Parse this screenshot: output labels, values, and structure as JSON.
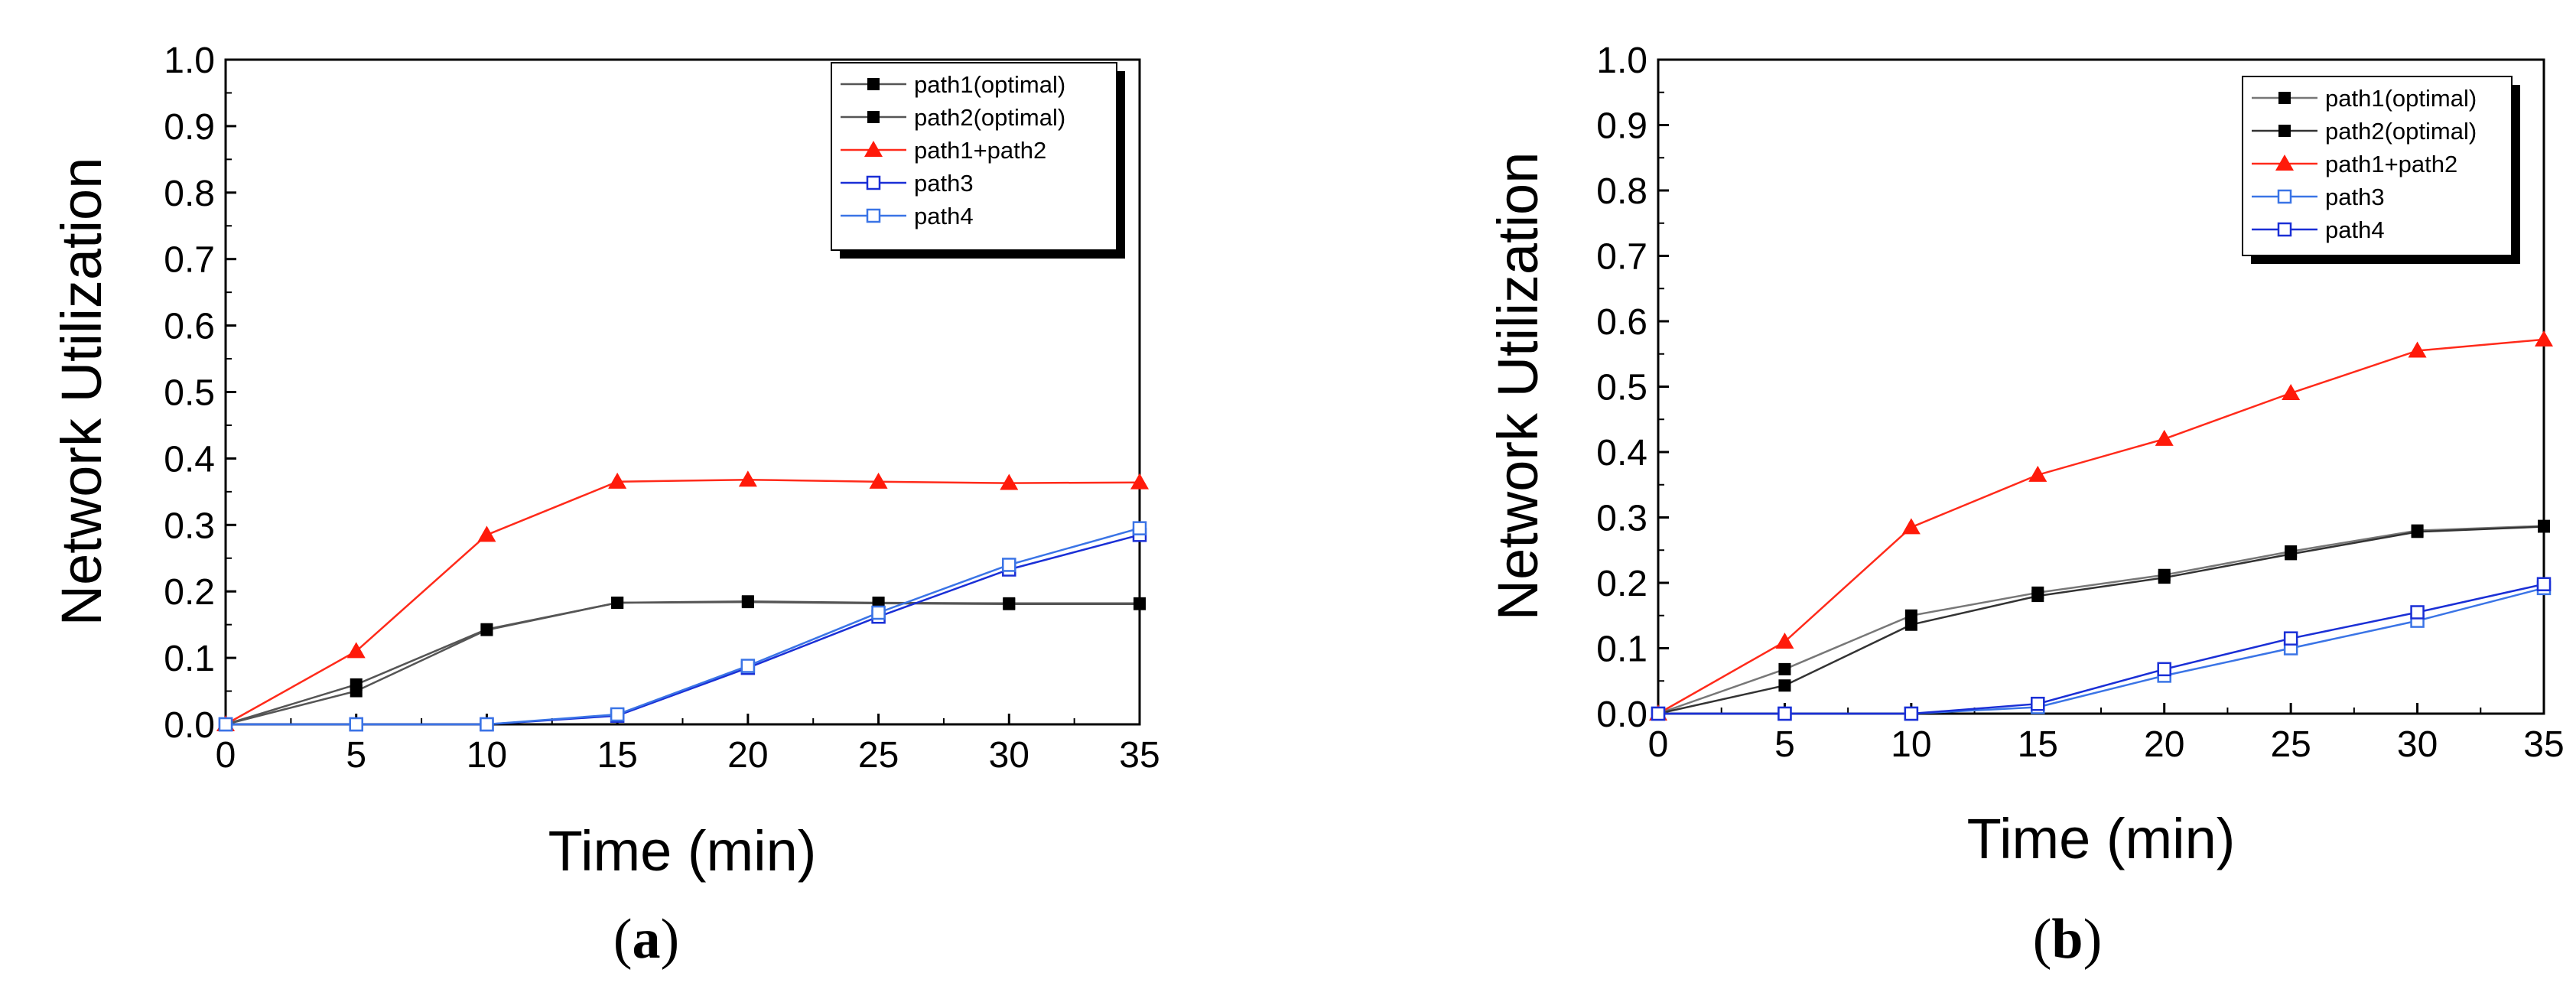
{
  "chart_data": [
    {
      "type": "line",
      "panel_label": "a",
      "xlabel": "Time (min)",
      "ylabel": "Network Utilization",
      "xlim": [
        0,
        35
      ],
      "ylim": [
        0.0,
        1.0
      ],
      "xticks": [
        0,
        5,
        10,
        15,
        20,
        25,
        30,
        35
      ],
      "yticks": [
        "0.0",
        "0.1",
        "0.2",
        "0.3",
        "0.4",
        "0.5",
        "0.6",
        "0.7",
        "0.8",
        "0.9",
        "1.0"
      ],
      "legend_position": "top-right",
      "x": [
        0,
        5,
        10,
        15,
        20,
        25,
        30,
        35
      ],
      "series": [
        {
          "name": "path1(optimal)",
          "color": "#555555",
          "marker": "filled-square",
          "values": [
            0.0,
            0.06,
            0.143,
            0.183,
            0.185,
            0.183,
            0.182,
            0.182
          ]
        },
        {
          "name": "path2(optimal)",
          "color": "#555555",
          "marker": "filled-square",
          "values": [
            0.0,
            0.05,
            0.142,
            0.183,
            0.184,
            0.182,
            0.181,
            0.181
          ]
        },
        {
          "name": "path1+path2",
          "color": "#ff2a1a",
          "marker": "filled-triangle",
          "values": [
            0.0,
            0.11,
            0.285,
            0.365,
            0.368,
            0.365,
            0.363,
            0.364
          ]
        },
        {
          "name": "path3",
          "color": "#1a2fd6",
          "marker": "open-square",
          "values": [
            0.0,
            0.0,
            0.0,
            0.013,
            0.085,
            0.162,
            0.233,
            0.285
          ]
        },
        {
          "name": "path4",
          "color": "#3a74e6",
          "marker": "open-square",
          "values": [
            0.0,
            0.0,
            0.0,
            0.015,
            0.088,
            0.168,
            0.24,
            0.295
          ]
        }
      ]
    },
    {
      "type": "line",
      "panel_label": "b",
      "xlabel": "Time (min)",
      "ylabel": "Network Utilization",
      "xlim": [
        0,
        35
      ],
      "ylim": [
        0.0,
        1.0
      ],
      "xticks": [
        0,
        5,
        10,
        15,
        20,
        25,
        30,
        35
      ],
      "yticks": [
        "0.0",
        "0.1",
        "0.2",
        "0.3",
        "0.4",
        "0.5",
        "0.6",
        "0.7",
        "0.8",
        "0.9",
        "1.0"
      ],
      "legend_position": "top-right",
      "x": [
        0,
        5,
        10,
        15,
        20,
        25,
        30,
        35
      ],
      "series": [
        {
          "name": "path1(optimal)",
          "color": "#777777",
          "marker": "filled-square",
          "values": [
            0.0,
            0.068,
            0.15,
            0.185,
            0.212,
            0.248,
            0.28,
            0.287
          ]
        },
        {
          "name": "path2(optimal)",
          "color": "#333333",
          "marker": "filled-square",
          "values": [
            0.0,
            0.043,
            0.136,
            0.18,
            0.208,
            0.244,
            0.278,
            0.286
          ]
        },
        {
          "name": "path1+path2",
          "color": "#ff2a1a",
          "marker": "filled-triangle",
          "values": [
            0.0,
            0.11,
            0.285,
            0.365,
            0.42,
            0.49,
            0.555,
            0.572
          ]
        },
        {
          "name": "path3",
          "color": "#3a74e6",
          "marker": "open-square",
          "values": [
            0.0,
            0.0,
            0.0,
            0.01,
            0.058,
            0.1,
            0.142,
            0.192
          ]
        },
        {
          "name": "path4",
          "color": "#1a2fd6",
          "marker": "open-square",
          "values": [
            0.0,
            0.0,
            0.0,
            0.015,
            0.068,
            0.115,
            0.155,
            0.198
          ]
        }
      ]
    }
  ]
}
